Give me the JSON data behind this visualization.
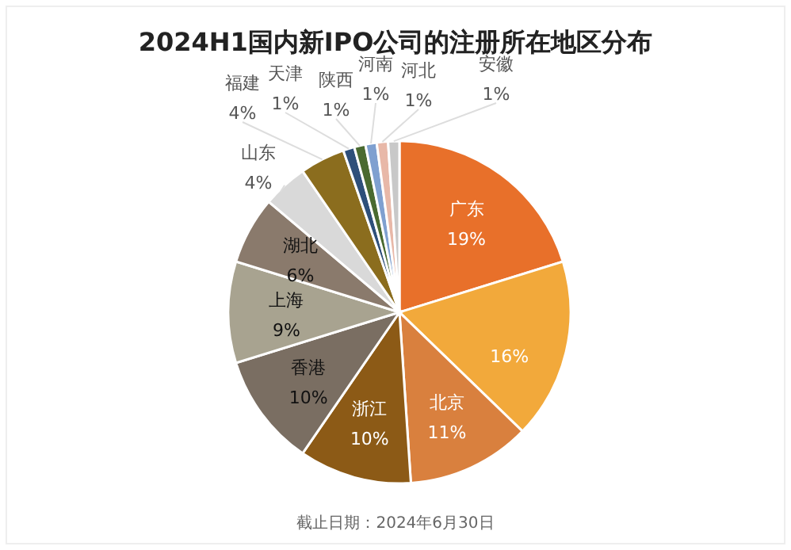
{
  "chart_data": {
    "type": "pie",
    "title": "2024H1国内新IPO公司的注册所在地区分布",
    "categories": [
      "广东",
      null,
      "北京",
      "浙江",
      "香港",
      "上海",
      "湖北",
      "山东",
      "福建",
      "天津",
      "陕西",
      "河南",
      "河北",
      "安徽"
    ],
    "values": [
      19,
      16,
      11,
      10,
      10,
      9,
      6,
      4,
      4,
      1,
      1,
      1,
      1,
      1
    ],
    "value_labels": [
      "19%",
      "16%",
      "11%",
      "10%",
      "10%",
      "9%",
      "6%",
      "4%",
      "4%",
      "1%",
      "1%",
      "1%",
      "1%",
      "1%"
    ],
    "colors": [
      "#e8702a",
      "#f2a93b",
      "#d9803e",
      "#8c5a16",
      "#7a6e62",
      "#a8a390",
      "#8a7a6c",
      "#d9d9d9",
      "#8b6d1e",
      "#2e4f7a",
      "#4a6a30",
      "#7fa0d0",
      "#e8b8a8",
      "#c8c8c8"
    ],
    "annotations": [
      "截止日期：2024年6月30日"
    ]
  }
}
